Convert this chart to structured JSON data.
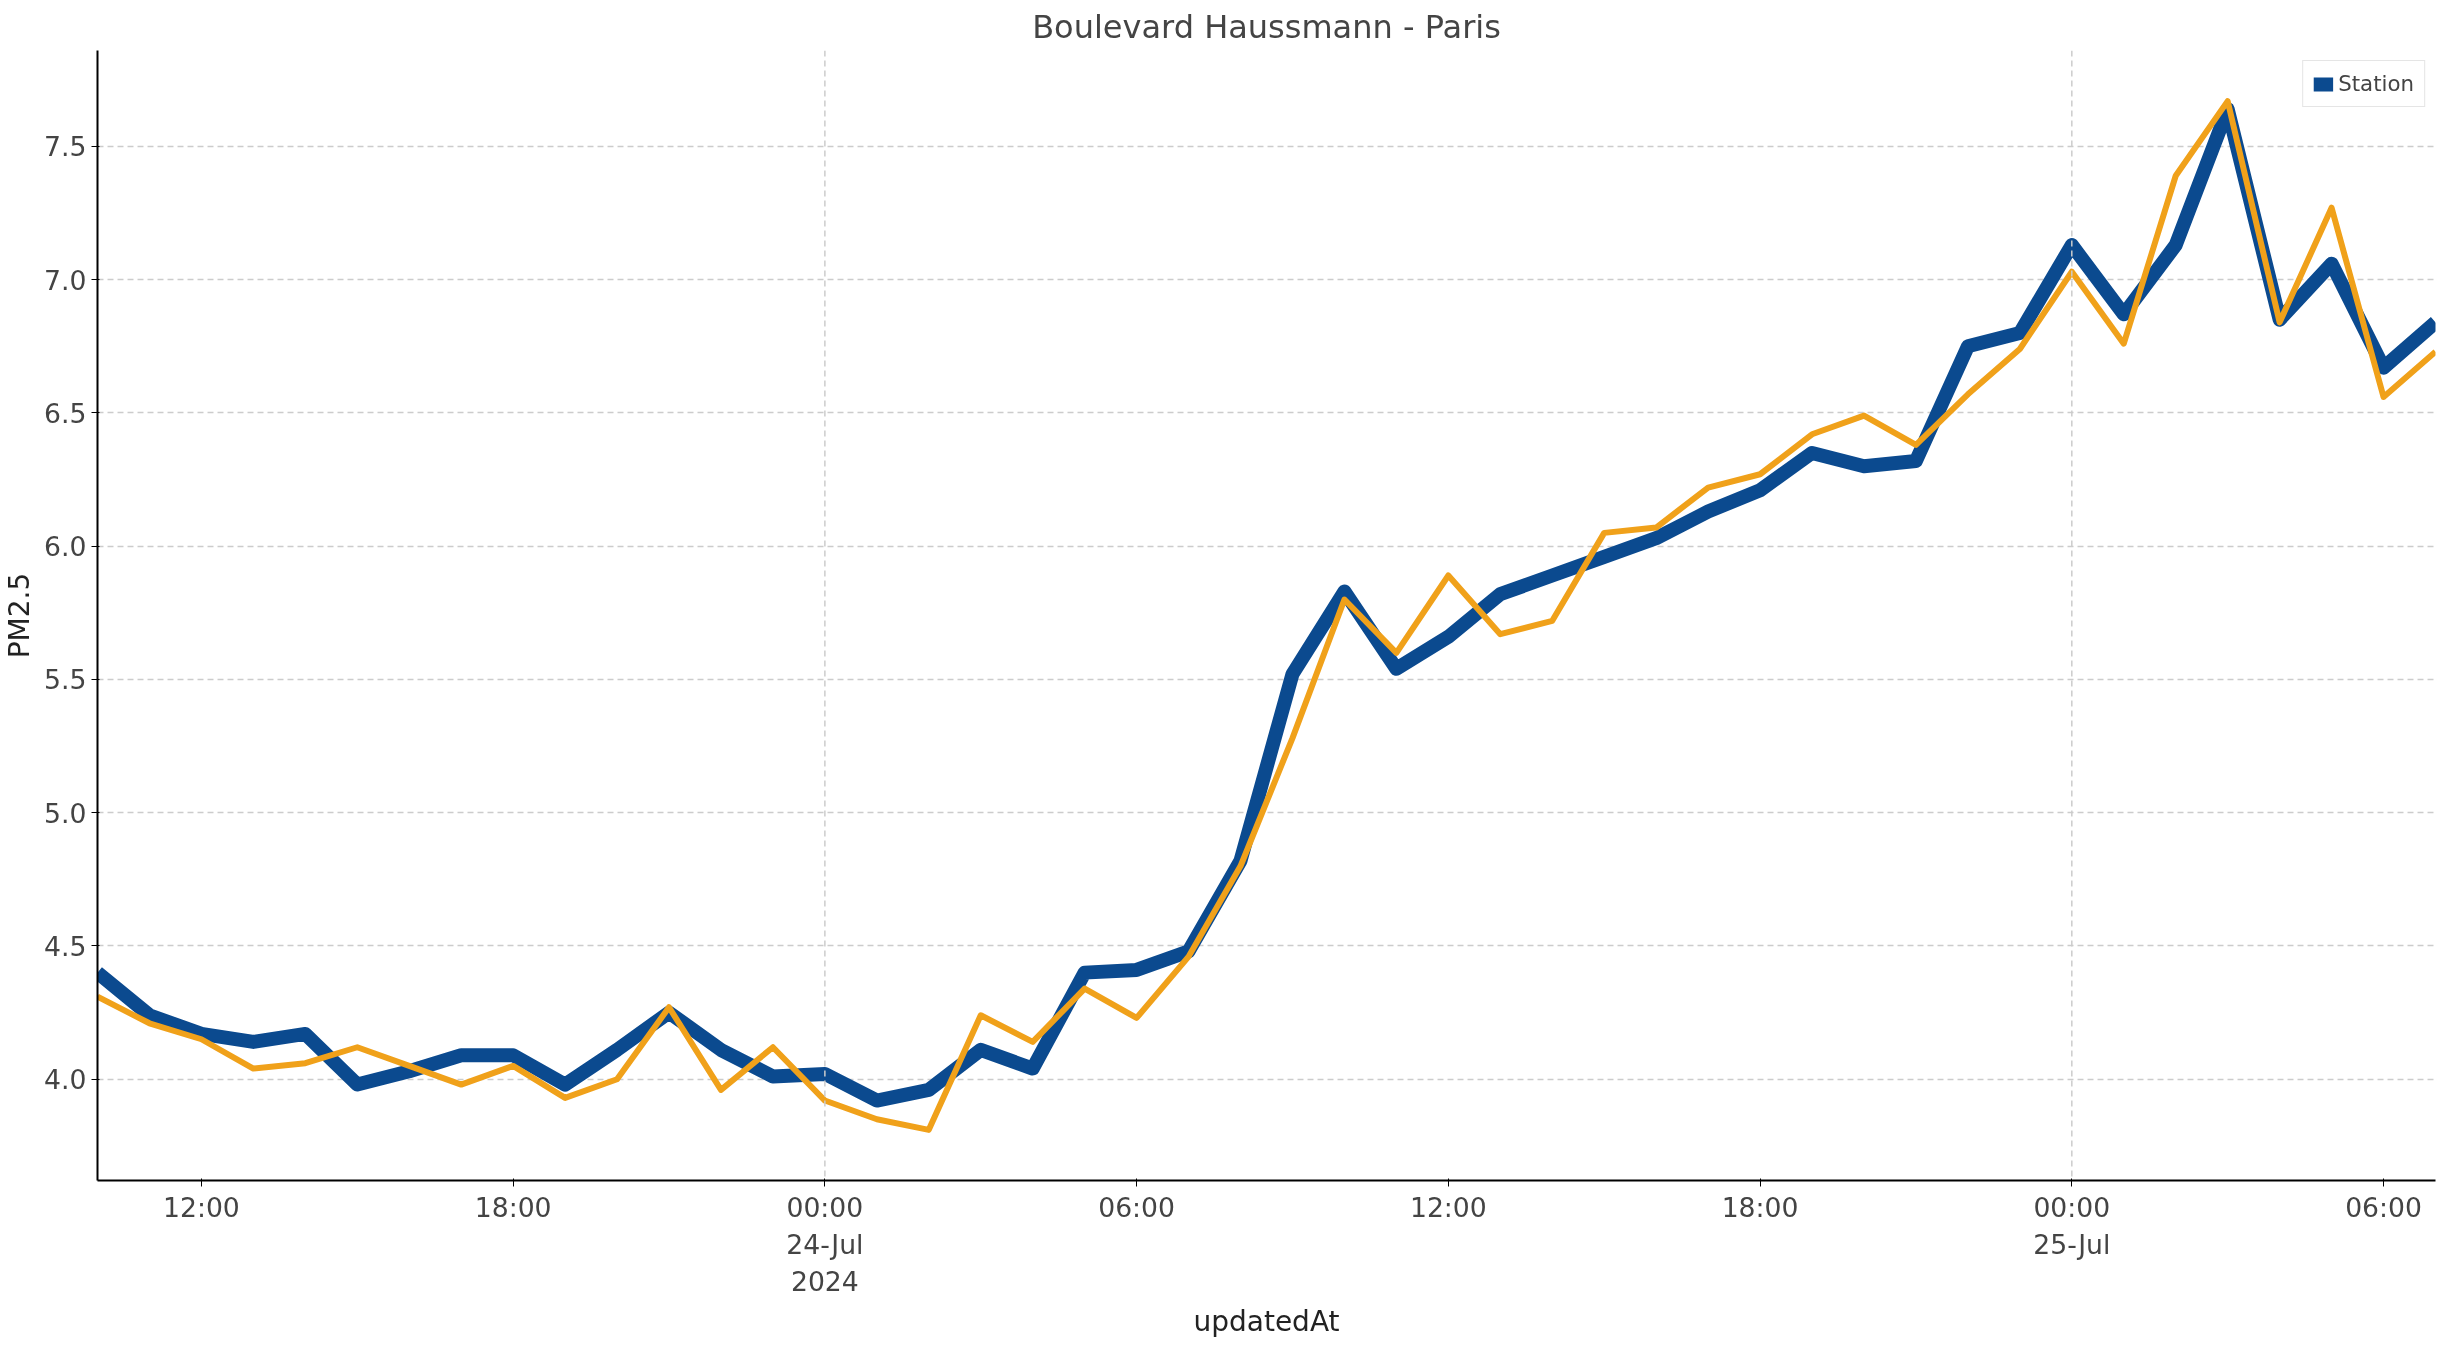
{
  "chart_data": {
    "type": "line",
    "title": "Boulevard Haussmann - Paris",
    "xlabel": "updatedAt",
    "ylabel": "PM2.5",
    "x": [
      "2024-07-23T10:00",
      "2024-07-23T11:00",
      "2024-07-23T12:00",
      "2024-07-23T13:00",
      "2024-07-23T14:00",
      "2024-07-23T15:00",
      "2024-07-23T16:00",
      "2024-07-23T17:00",
      "2024-07-23T18:00",
      "2024-07-23T19:00",
      "2024-07-23T20:00",
      "2024-07-23T21:00",
      "2024-07-23T22:00",
      "2024-07-23T23:00",
      "2024-07-24T00:00",
      "2024-07-24T01:00",
      "2024-07-24T02:00",
      "2024-07-24T03:00",
      "2024-07-24T04:00",
      "2024-07-24T05:00",
      "2024-07-24T06:00",
      "2024-07-24T07:00",
      "2024-07-24T08:00",
      "2024-07-24T09:00",
      "2024-07-24T10:00",
      "2024-07-24T11:00",
      "2024-07-24T12:00",
      "2024-07-24T13:00",
      "2024-07-24T14:00",
      "2024-07-24T15:00",
      "2024-07-24T16:00",
      "2024-07-24T17:00",
      "2024-07-24T18:00",
      "2024-07-24T19:00",
      "2024-07-24T20:00",
      "2024-07-24T21:00",
      "2024-07-24T22:00",
      "2024-07-24T23:00",
      "2024-07-25T00:00",
      "2024-07-25T01:00",
      "2024-07-25T02:00",
      "2024-07-25T03:00",
      "2024-07-25T04:00",
      "2024-07-25T05:00",
      "2024-07-25T06:00",
      "2024-07-25T07:00"
    ],
    "series": [
      {
        "name": "Station",
        "color": "#0b4a8f",
        "values": [
          4.4,
          4.24,
          4.17,
          4.14,
          4.17,
          3.98,
          4.03,
          4.09,
          4.09,
          3.98,
          4.11,
          4.25,
          4.11,
          4.01,
          4.02,
          3.92,
          3.96,
          4.11,
          4.04,
          4.4,
          4.41,
          4.48,
          4.82,
          5.52,
          5.83,
          5.54,
          5.66,
          5.82,
          5.89,
          5.96,
          6.03,
          6.13,
          6.21,
          6.35,
          6.3,
          6.32,
          6.75,
          6.8,
          7.13,
          6.87,
          7.13,
          7.64,
          6.85,
          7.06,
          6.67,
          6.84
        ]
      },
      {
        "color": "#f0a11a",
        "values": [
          4.31,
          4.21,
          4.15,
          4.04,
          4.06,
          4.12,
          4.05,
          3.98,
          4.05,
          3.93,
          4.0,
          4.27,
          3.96,
          4.12,
          3.92,
          3.85,
          3.81,
          4.24,
          4.14,
          4.34,
          4.23,
          4.46,
          4.8,
          5.28,
          5.8,
          5.6,
          5.89,
          5.67,
          5.72,
          6.05,
          6.07,
          6.22,
          6.27,
          6.42,
          6.49,
          6.38,
          6.57,
          6.74,
          7.03,
          6.76,
          7.39,
          7.67,
          6.84,
          7.27,
          6.56,
          6.73
        ]
      }
    ],
    "xlim": [
      "2024-07-23T10:00",
      "2024-07-25T07:00"
    ],
    "xticks": [
      {
        "value": "2024-07-23T12:00",
        "label": "12:00"
      },
      {
        "value": "2024-07-23T18:00",
        "label": "18:00"
      },
      {
        "value": "2024-07-24T00:00",
        "label": "00:00\n24-Jul\n2024"
      },
      {
        "value": "2024-07-24T06:00",
        "label": "06:00"
      },
      {
        "value": "2024-07-24T12:00",
        "label": "12:00"
      },
      {
        "value": "2024-07-24T18:00",
        "label": "18:00"
      },
      {
        "value": "2024-07-25T00:00",
        "label": "00:00\n25-Jul"
      },
      {
        "value": "2024-07-25T06:00",
        "label": "06:00"
      }
    ],
    "ylim": [
      3.62,
      7.86
    ],
    "yticks": [
      {
        "value": 4,
        "label": "4.0"
      },
      {
        "value": 4.5,
        "label": "4.5"
      },
      {
        "value": 5,
        "label": "5.0"
      },
      {
        "value": 5.5,
        "label": "5.5"
      },
      {
        "value": 6,
        "label": "6.0"
      },
      {
        "value": 6.5,
        "label": "6.5"
      },
      {
        "value": 7,
        "label": "7.0"
      },
      {
        "value": 7.5,
        "label": "7.5"
      }
    ],
    "ref_lines": [
      {
        "axis": "x",
        "value": "2024-07-24T00:00",
        "line_style": "dashed",
        "color": "#cccccc"
      },
      {
        "axis": "x",
        "value": "2024-07-25T00:00",
        "line_style": "dashed",
        "color": "#cccccc"
      }
    ],
    "grid": "y",
    "legend": "top right",
    "line_style": "solid",
    "marker": "none"
  }
}
